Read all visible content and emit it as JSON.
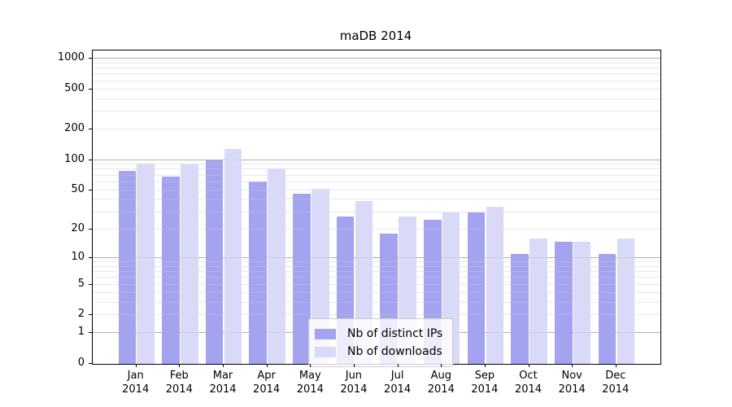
{
  "title": "maDB 2014",
  "legend": {
    "items": [
      {
        "label": "Nb of distinct IPs",
        "color": "#a3a3ef"
      },
      {
        "label": "Nb of downloads",
        "color": "#d9d9f8"
      }
    ]
  },
  "chart_data": {
    "type": "bar",
    "title": "maDB 2014",
    "categories": [
      "Jan",
      "Feb",
      "Mar",
      "Apr",
      "May",
      "Jun",
      "Jul",
      "Aug",
      "Sep",
      "Oct",
      "Nov",
      "Dec"
    ],
    "x_year": "2014",
    "series": [
      {
        "name": "Nb of distinct IPs",
        "color": "#a3a3ef",
        "values": [
          78,
          68,
          100,
          61,
          46,
          27,
          18,
          25,
          30,
          11,
          15,
          11
        ]
      },
      {
        "name": "Nb of downloads",
        "color": "#d9d9f8",
        "values": [
          92,
          91,
          128,
          82,
          52,
          39,
          27,
          30,
          34,
          16,
          15,
          16
        ]
      }
    ],
    "xlabel": "",
    "ylabel": "",
    "yscale": "log1p",
    "ylim": [
      0,
      1200
    ],
    "y_ticks": [
      1000,
      500,
      200,
      100,
      50,
      20,
      10,
      5,
      2,
      1,
      0
    ],
    "grid": true,
    "grid_major_values": [
      1,
      10,
      100,
      1000
    ],
    "grid_major_color": "#b0b0b0",
    "grid_minor_color": "#e8e8e8",
    "axis_color": "#000000",
    "legend_position": "lower center"
  }
}
